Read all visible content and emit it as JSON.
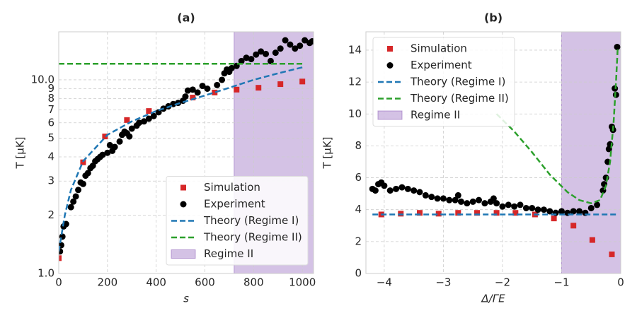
{
  "chart_data": [
    {
      "type": "scatter",
      "title": "(a)",
      "x_label": "s",
      "y_label": "T [μK]",
      "yscale": "log",
      "grid": true,
      "legend": "lower right",
      "xlim": [
        0,
        1046
      ],
      "ylim": [
        1,
        17.7
      ],
      "xticks": [
        0,
        200,
        400,
        600,
        800,
        1000
      ],
      "yticks": [
        {
          "value": 1,
          "label": "1.0"
        },
        2,
        3,
        4,
        5,
        6,
        7,
        8,
        9,
        {
          "value": 10,
          "label": "10.0"
        }
      ],
      "series": [
        {
          "name": "Simulation",
          "style": "square",
          "color": "#d62728",
          "x": [
            0,
            100,
            190,
            280,
            370,
            550,
            640,
            730,
            820,
            910,
            1000
          ],
          "values": [
            1.2,
            3.75,
            5.1,
            6.2,
            6.9,
            8.1,
            8.6,
            8.9,
            9.1,
            9.5,
            9.8
          ]
        },
        {
          "name": "Experiment",
          "style": "circle",
          "color": "#000000",
          "x": [
            5,
            10,
            15,
            20,
            30,
            50,
            60,
            70,
            80,
            90,
            100,
            110,
            120,
            130,
            140,
            150,
            160,
            170,
            180,
            200,
            210,
            220,
            230,
            250,
            260,
            270,
            280,
            290,
            300,
            320,
            330,
            350,
            370,
            390,
            410,
            430,
            450,
            470,
            490,
            510,
            520,
            530,
            550,
            570,
            590,
            610,
            650,
            670,
            680,
            690,
            700,
            710,
            730,
            750,
            770,
            790,
            810,
            830,
            850,
            870,
            890,
            910,
            930,
            950,
            970,
            990,
            1010,
            1030,
            1040
          ],
          "values": [
            1.3,
            1.4,
            1.55,
            1.75,
            1.8,
            2.2,
            2.35,
            2.5,
            2.7,
            2.95,
            2.9,
            3.2,
            3.3,
            3.5,
            3.6,
            3.8,
            3.9,
            4.0,
            4.1,
            4.2,
            4.6,
            4.3,
            4.5,
            4.8,
            5.2,
            5.4,
            5.3,
            5.1,
            5.6,
            5.8,
            6.0,
            6.1,
            6.3,
            6.5,
            6.8,
            7.1,
            7.3,
            7.5,
            7.6,
            7.8,
            8.2,
            8.8,
            8.9,
            8.6,
            9.3,
            9.0,
            9.4,
            10.0,
            10.8,
            11.3,
            11.0,
            11.5,
            11.8,
            12.5,
            13.0,
            12.8,
            13.5,
            14.0,
            13.6,
            12.5,
            13.8,
            14.5,
            16.0,
            15.2,
            14.5,
            15.0,
            16.0,
            15.5,
            15.8
          ]
        },
        {
          "name": "Theory (Regime I)",
          "style": "dashed",
          "color": "#1f77b4",
          "x": [
            0,
            25,
            50,
            100,
            200,
            300,
            400,
            500,
            600,
            700,
            800,
            900,
            1000
          ],
          "values": [
            1.3,
            2.0,
            2.7,
            3.8,
            5.2,
            6.1,
            6.9,
            7.6,
            8.3,
            9.1,
            10.0,
            10.8,
            11.6
          ]
        },
        {
          "name": "Theory (Regime II)",
          "style": "dashed",
          "color": "#2ca02c",
          "x": [
            0,
            1000
          ],
          "values": [
            12.1,
            12.1
          ]
        }
      ],
      "region": {
        "name": "Regime II",
        "color": "#9467bd",
        "x": [
          720,
          1046
        ]
      }
    },
    {
      "type": "scatter",
      "title": "(b)",
      "x_label": "Δ/ΓE",
      "y_label": "T [μK]",
      "yscale": "linear",
      "grid": true,
      "legend": "upper left",
      "xlim": [
        -4.31,
        0
      ],
      "ylim": [
        0,
        15.15
      ],
      "xticks": [
        {
          "value": -4,
          "label": "−4"
        },
        {
          "value": -3,
          "label": "−3"
        },
        {
          "value": -2,
          "label": "−2"
        },
        {
          "value": -1,
          "label": "−1"
        },
        0
      ],
      "yticks": [
        0,
        2,
        4,
        6,
        8,
        10,
        12,
        14
      ],
      "series": [
        {
          "name": "Simulation",
          "style": "square",
          "color": "#d62728",
          "x": [
            -4.05,
            -3.72,
            -3.4,
            -3.08,
            -2.75,
            -2.43,
            -2.1,
            -1.78,
            -1.45,
            -1.13,
            -0.8,
            -0.48,
            -0.15
          ],
          "values": [
            3.7,
            3.75,
            3.8,
            3.75,
            3.8,
            3.8,
            3.8,
            3.8,
            3.7,
            3.45,
            3.0,
            2.1,
            1.2
          ]
        },
        {
          "name": "Experiment",
          "style": "circle",
          "color": "#000000",
          "x": [
            -4.2,
            -4.15,
            -4.1,
            -4.05,
            -4.0,
            -3.9,
            -3.8,
            -3.7,
            -3.6,
            -3.5,
            -3.4,
            -3.3,
            -3.2,
            -3.1,
            -3.0,
            -2.9,
            -2.8,
            -2.75,
            -2.7,
            -2.6,
            -2.5,
            -2.4,
            -2.3,
            -2.2,
            -2.15,
            -2.1,
            -2.0,
            -1.9,
            -1.8,
            -1.7,
            -1.6,
            -1.5,
            -1.4,
            -1.3,
            -1.2,
            -1.1,
            -1.0,
            -0.9,
            -0.8,
            -0.7,
            -0.6,
            -0.5,
            -0.4,
            -0.3,
            -0.28,
            -0.25,
            -0.22,
            -0.2,
            -0.18,
            -0.15,
            -0.13,
            -0.1,
            -0.08,
            -0.06
          ],
          "values": [
            5.3,
            5.2,
            5.6,
            5.7,
            5.5,
            5.2,
            5.3,
            5.4,
            5.3,
            5.2,
            5.1,
            4.9,
            4.8,
            4.7,
            4.7,
            4.6,
            4.6,
            4.9,
            4.5,
            4.4,
            4.5,
            4.6,
            4.4,
            4.5,
            4.7,
            4.4,
            4.2,
            4.3,
            4.2,
            4.3,
            4.1,
            4.1,
            4.0,
            4.0,
            3.9,
            3.8,
            3.9,
            3.8,
            3.9,
            3.9,
            3.8,
            4.1,
            4.3,
            5.2,
            5.6,
            6.0,
            7.0,
            7.8,
            8.1,
            9.2,
            9.0,
            11.6,
            11.2,
            14.2
          ]
        },
        {
          "name": "Theory (Regime I)",
          "style": "dashed",
          "color": "#1f77b4",
          "x": [
            -4.2,
            -0.05
          ],
          "values": [
            3.7,
            3.7
          ]
        },
        {
          "name": "Theory (Regime II)",
          "style": "dashed",
          "color": "#2ca02c",
          "x": [
            -2.1,
            -1.8,
            -1.5,
            -1.2,
            -0.9,
            -0.7,
            -0.5,
            -0.35,
            -0.25,
            -0.18,
            -0.12,
            -0.08,
            -0.05
          ],
          "values": [
            10,
            8.9,
            7.6,
            6.2,
            5.1,
            4.6,
            4.4,
            4.6,
            5.5,
            7,
            9.5,
            12,
            14.2
          ]
        }
      ],
      "region": {
        "name": "Regime II",
        "color": "#9467bd",
        "x": [
          -1,
          0
        ]
      }
    }
  ]
}
